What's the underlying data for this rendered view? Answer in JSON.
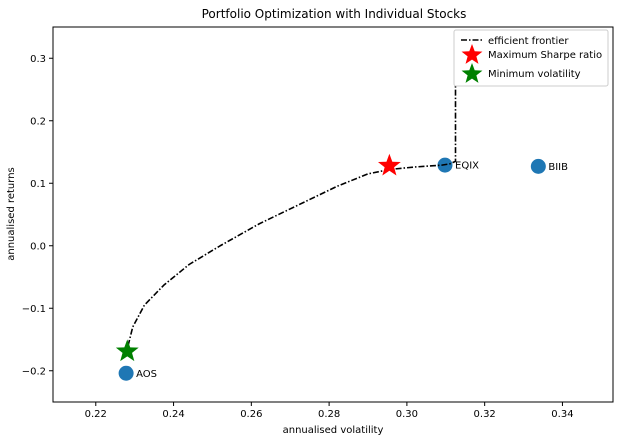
{
  "chart_data": {
    "type": "scatter",
    "title": "Portfolio Optimization with Individual Stocks",
    "xlabel": "annualised volatility",
    "ylabel": "annualised returns",
    "xlim": [
      0.209,
      0.353
    ],
    "ylim": [
      -0.25,
      0.35
    ],
    "x_ticks": [
      0.22,
      0.24,
      0.26,
      0.28,
      0.3,
      0.32,
      0.34
    ],
    "x_tick_labels": [
      "0.22",
      "0.24",
      "0.26",
      "0.28",
      "0.30",
      "0.32",
      "0.34"
    ],
    "y_ticks": [
      -0.2,
      -0.1,
      0.0,
      0.1,
      0.2,
      0.3
    ],
    "y_tick_labels": [
      "−0.2",
      "−0.1",
      "0.0",
      "0.1",
      "0.2",
      "0.3"
    ],
    "grid": false,
    "legend_position": "top-right",
    "stocks": [
      {
        "label": "AOS",
        "x": 0.2278,
        "y": -0.204
      },
      {
        "label": "EQIX",
        "x": 0.3098,
        "y": 0.129
      },
      {
        "label": "BIIB",
        "x": 0.3338,
        "y": 0.127
      }
    ],
    "efficient_frontier": {
      "name": "efficient frontier",
      "x": [
        0.2283,
        0.2295,
        0.2325,
        0.2375,
        0.244,
        0.252,
        0.262,
        0.272,
        0.282,
        0.29,
        0.2955,
        0.302,
        0.309,
        0.311,
        0.3125,
        0.3125,
        0.3125
      ],
      "y": [
        -0.16,
        -0.13,
        -0.095,
        -0.063,
        -0.03,
        0.0,
        0.035,
        0.065,
        0.095,
        0.115,
        0.122,
        0.126,
        0.129,
        0.131,
        0.135,
        0.25,
        0.34
      ]
    },
    "max_sharpe": {
      "name": "Maximum Sharpe ratio",
      "x": 0.2955,
      "y": 0.128,
      "color": "#ff0000"
    },
    "min_volatility": {
      "name": "Minimum volatility",
      "x": 0.2281,
      "y": -0.169,
      "color": "#008000"
    },
    "stock_color": "#1f77b4",
    "frontier_color": "#000000"
  }
}
